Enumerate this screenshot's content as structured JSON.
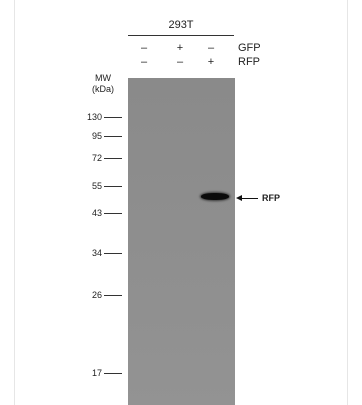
{
  "cell_line": "293T",
  "rows": [
    {
      "label": "GFP",
      "signs": [
        "–",
        "+",
        "–"
      ]
    },
    {
      "label": "RFP",
      "signs": [
        "–",
        "–",
        "+"
      ]
    }
  ],
  "mw": {
    "header_line1": "MW",
    "header_line2": "(kDa)",
    "markers": [
      "130",
      "95",
      "72",
      "55",
      "43",
      "34",
      "26",
      "17"
    ]
  },
  "band": {
    "lane": 3,
    "label": "RFP"
  },
  "colors": {
    "membrane": "#8d8d8d",
    "band": "#0b0b0b"
  }
}
